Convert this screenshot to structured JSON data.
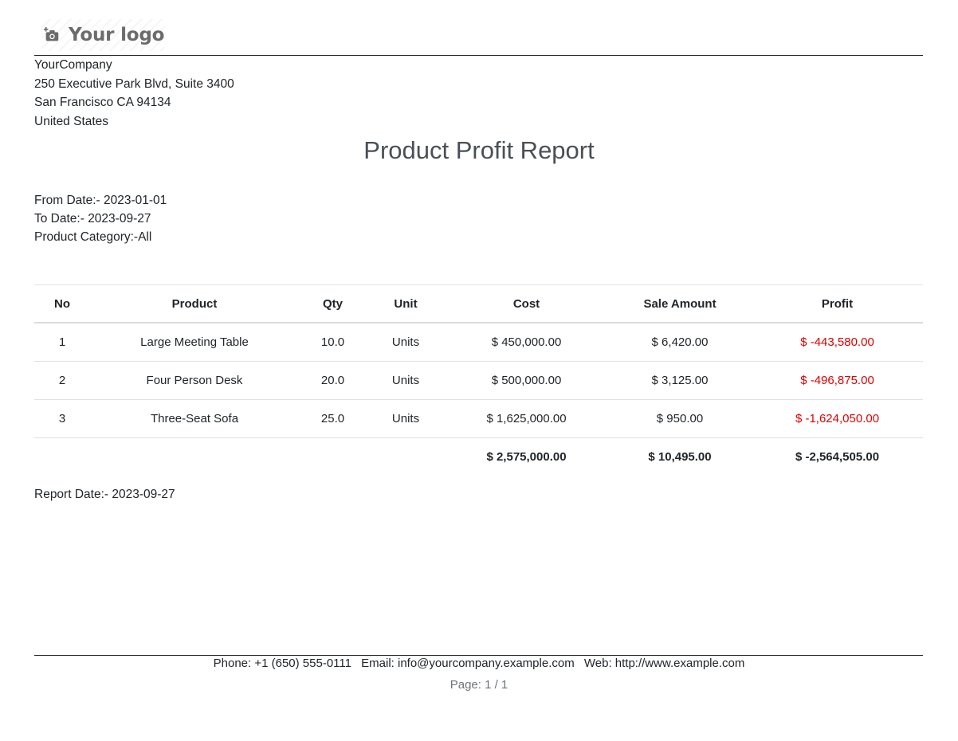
{
  "logo": {
    "text": "Your logo",
    "icon": "camera-plus-icon"
  },
  "company": {
    "name": "YourCompany",
    "street": "250 Executive Park Blvd, Suite 3400",
    "city": "San Francisco CA 94134",
    "country": "United States"
  },
  "report": {
    "title": "Product Profit Report",
    "from_date": "From Date:- 2023-01-01",
    "to_date": "To Date:- 2023-09-27",
    "category": "Product Category:-All",
    "report_date": "Report Date:- 2023-09-27"
  },
  "table": {
    "headers": {
      "no": "No",
      "product": "Product",
      "qty": "Qty",
      "unit": "Unit",
      "cost": "Cost",
      "sale_amount": "Sale Amount",
      "profit": "Profit"
    },
    "rows": [
      {
        "no": "1",
        "product": "Large Meeting Table",
        "qty": "10.0",
        "unit": "Units",
        "cost": "$ 450,000.00",
        "sale_amount": "$ 6,420.00",
        "profit": "$ -443,580.00"
      },
      {
        "no": "2",
        "product": "Four Person Desk",
        "qty": "20.0",
        "unit": "Units",
        "cost": "$ 500,000.00",
        "sale_amount": "$ 3,125.00",
        "profit": "$ -496,875.00"
      },
      {
        "no": "3",
        "product": "Three-Seat Sofa",
        "qty": "25.0",
        "unit": "Units",
        "cost": "$ 1,625,000.00",
        "sale_amount": "$ 950.00",
        "profit": "$ -1,624,050.00"
      }
    ],
    "totals": {
      "cost": "$ 2,575,000.00",
      "sale_amount": "$ 10,495.00",
      "profit": "$ -2,564,505.00"
    }
  },
  "footer": {
    "phone": "Phone: +1 (650) 555-0111",
    "email": "Email: info@yourcompany.example.com",
    "web": "Web: http://www.example.com",
    "page": "Page: 1 / 1"
  },
  "colors": {
    "negative": "#e00000",
    "title": "#495057"
  }
}
